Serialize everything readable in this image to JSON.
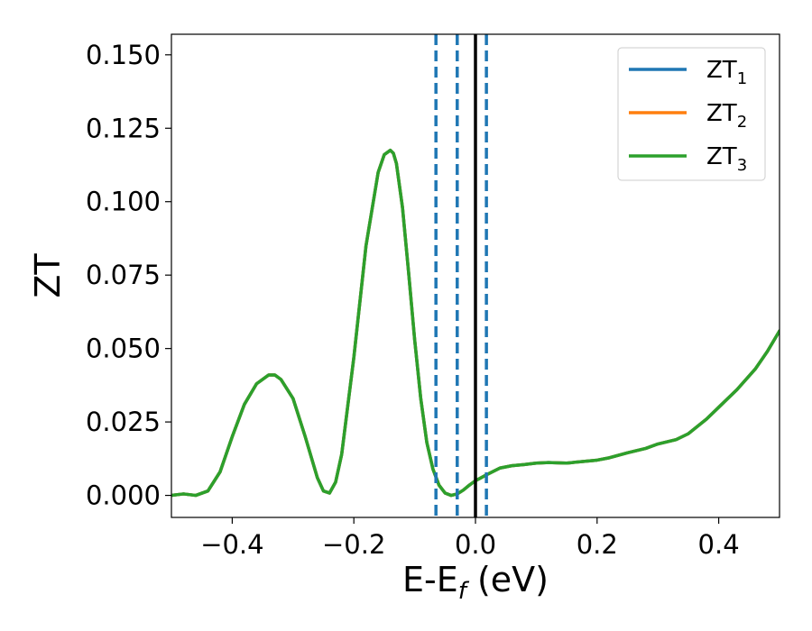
{
  "chart_data": {
    "type": "line",
    "xlabel_main": "E-E",
    "xlabel_sub": "f",
    "xlabel_unit": " (eV)",
    "ylabel": "ZT",
    "xlim": [
      -0.5,
      0.5
    ],
    "ylim": [
      -0.0075,
      0.157
    ],
    "x_ticks": [
      -0.4,
      -0.2,
      0.0,
      0.2,
      0.4
    ],
    "x_tick_labels": [
      "−0.4",
      "−0.2",
      "0.0",
      "0.2",
      "0.4"
    ],
    "y_ticks": [
      0.0,
      0.025,
      0.05,
      0.075,
      0.1,
      0.125,
      0.15
    ],
    "y_tick_labels": [
      "0.000",
      "0.025",
      "0.050",
      "0.075",
      "0.100",
      "0.125",
      "0.150"
    ],
    "grid": false,
    "legend_position": "top-right",
    "series": [
      {
        "name": "ZT",
        "subscript": "1",
        "color": "#1f77b4",
        "x": [
          -0.5,
          -0.48,
          -0.46,
          -0.44,
          -0.42,
          -0.4,
          -0.38,
          -0.36,
          -0.34,
          -0.33,
          -0.32,
          -0.3,
          -0.28,
          -0.26,
          -0.25,
          -0.24,
          -0.23,
          -0.22,
          -0.2,
          -0.18,
          -0.16,
          -0.15,
          -0.14,
          -0.135,
          -0.13,
          -0.12,
          -0.11,
          -0.1,
          -0.09,
          -0.08,
          -0.07,
          -0.06,
          -0.05,
          -0.04,
          -0.03,
          -0.02,
          -0.01,
          0.0,
          0.02,
          0.04,
          0.06,
          0.08,
          0.1,
          0.12,
          0.15,
          0.2,
          0.22,
          0.25,
          0.28,
          0.3,
          0.33,
          0.35,
          0.38,
          0.4,
          0.43,
          0.46,
          0.48,
          0.5
        ],
        "values": [
          0.0,
          0.0005,
          0.0,
          0.0015,
          0.008,
          0.02,
          0.031,
          0.038,
          0.041,
          0.041,
          0.0395,
          0.033,
          0.02,
          0.006,
          0.0015,
          0.0008,
          0.0045,
          0.014,
          0.047,
          0.085,
          0.11,
          0.116,
          0.1175,
          0.1165,
          0.113,
          0.098,
          0.076,
          0.053,
          0.033,
          0.018,
          0.009,
          0.0035,
          0.0008,
          0.0,
          0.0005,
          0.0018,
          0.0035,
          0.005,
          0.0072,
          0.0093,
          0.0101,
          0.0105,
          0.011,
          0.0112,
          0.011,
          0.012,
          0.0128,
          0.0145,
          0.016,
          0.0175,
          0.019,
          0.021,
          0.026,
          0.03,
          0.036,
          0.043,
          0.049,
          0.056
        ]
      },
      {
        "name": "ZT",
        "subscript": "2",
        "color": "#ff7f0e",
        "x": [
          -0.5,
          -0.48,
          -0.46,
          -0.44,
          -0.42,
          -0.4,
          -0.38,
          -0.36,
          -0.34,
          -0.33,
          -0.32,
          -0.3,
          -0.28,
          -0.26,
          -0.25,
          -0.24,
          -0.23,
          -0.22,
          -0.2,
          -0.18,
          -0.16,
          -0.15,
          -0.14,
          -0.135,
          -0.13,
          -0.12,
          -0.11,
          -0.1,
          -0.09,
          -0.08,
          -0.07,
          -0.06,
          -0.05,
          -0.04,
          -0.03,
          -0.02,
          -0.01,
          0.0,
          0.02,
          0.04,
          0.06,
          0.08,
          0.1,
          0.12,
          0.15,
          0.2,
          0.22,
          0.25,
          0.28,
          0.3,
          0.33,
          0.35,
          0.38,
          0.4,
          0.43,
          0.46,
          0.48,
          0.5
        ],
        "values": [
          0.0,
          0.0005,
          0.0,
          0.0015,
          0.008,
          0.02,
          0.031,
          0.038,
          0.041,
          0.041,
          0.0395,
          0.033,
          0.02,
          0.006,
          0.0015,
          0.0008,
          0.0045,
          0.014,
          0.047,
          0.085,
          0.11,
          0.116,
          0.1175,
          0.1165,
          0.113,
          0.098,
          0.076,
          0.053,
          0.033,
          0.018,
          0.009,
          0.0035,
          0.0008,
          0.0,
          0.0005,
          0.0018,
          0.0035,
          0.005,
          0.0072,
          0.0093,
          0.0101,
          0.0105,
          0.011,
          0.0112,
          0.011,
          0.012,
          0.0128,
          0.0145,
          0.016,
          0.0175,
          0.019,
          0.021,
          0.026,
          0.03,
          0.036,
          0.043,
          0.049,
          0.056
        ]
      },
      {
        "name": "ZT",
        "subscript": "3",
        "color": "#2ca02c",
        "x": [
          -0.5,
          -0.48,
          -0.46,
          -0.44,
          -0.42,
          -0.4,
          -0.38,
          -0.36,
          -0.34,
          -0.33,
          -0.32,
          -0.3,
          -0.28,
          -0.26,
          -0.25,
          -0.24,
          -0.23,
          -0.22,
          -0.2,
          -0.18,
          -0.16,
          -0.15,
          -0.14,
          -0.135,
          -0.13,
          -0.12,
          -0.11,
          -0.1,
          -0.09,
          -0.08,
          -0.07,
          -0.06,
          -0.05,
          -0.04,
          -0.03,
          -0.02,
          -0.01,
          0.0,
          0.02,
          0.04,
          0.06,
          0.08,
          0.1,
          0.12,
          0.15,
          0.2,
          0.22,
          0.25,
          0.28,
          0.3,
          0.33,
          0.35,
          0.38,
          0.4,
          0.43,
          0.46,
          0.48,
          0.5
        ],
        "values": [
          0.0,
          0.0005,
          0.0,
          0.0015,
          0.008,
          0.02,
          0.031,
          0.038,
          0.041,
          0.041,
          0.0395,
          0.033,
          0.02,
          0.006,
          0.0015,
          0.0008,
          0.0045,
          0.014,
          0.047,
          0.085,
          0.11,
          0.116,
          0.1175,
          0.1165,
          0.113,
          0.098,
          0.076,
          0.053,
          0.033,
          0.018,
          0.009,
          0.0035,
          0.0008,
          0.0,
          0.0005,
          0.0018,
          0.0035,
          0.005,
          0.0072,
          0.0093,
          0.0101,
          0.0105,
          0.011,
          0.0112,
          0.011,
          0.012,
          0.0128,
          0.0145,
          0.016,
          0.0175,
          0.019,
          0.021,
          0.026,
          0.03,
          0.036,
          0.043,
          0.049,
          0.056
        ]
      }
    ],
    "vertical_lines": [
      {
        "x": -0.065,
        "style": "dashed",
        "color": "#1f77b4"
      },
      {
        "x": -0.03,
        "style": "dashed",
        "color": "#1f77b4"
      },
      {
        "x": 0.018,
        "style": "dashed",
        "color": "#1f77b4"
      },
      {
        "x": 0.0,
        "style": "solid",
        "color": "#000000"
      }
    ]
  }
}
